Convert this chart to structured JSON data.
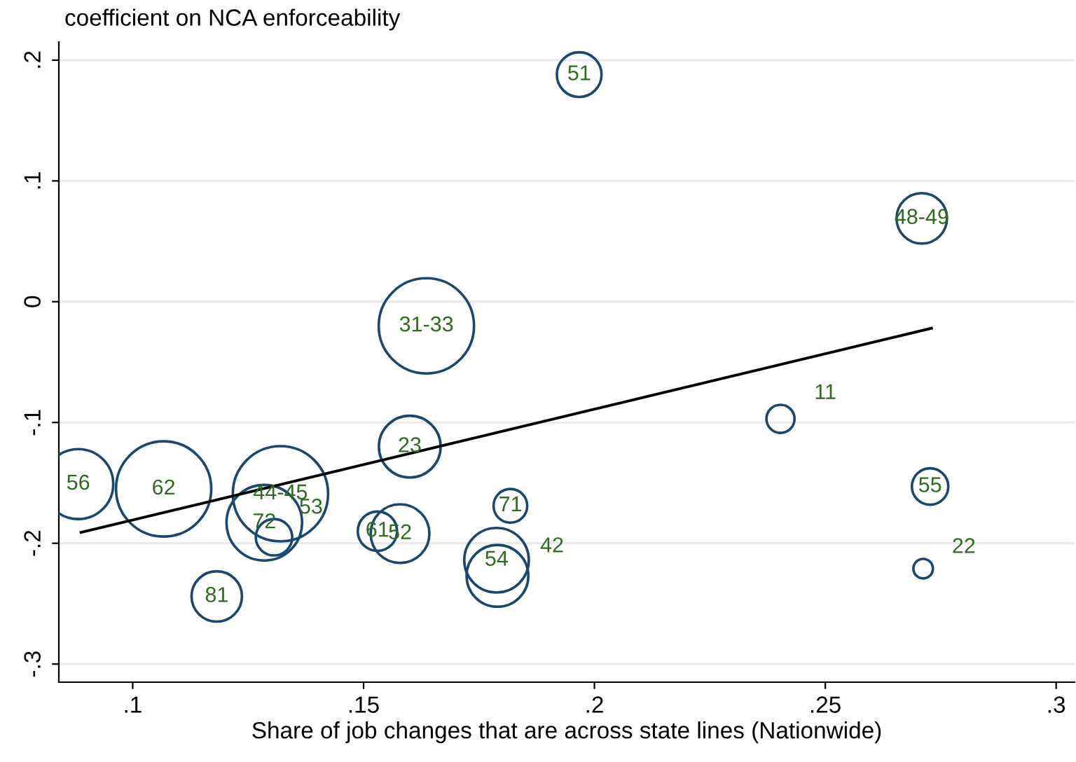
{
  "chart_data": {
    "type": "bubble",
    "ylabel": "coefficient on NCA enforceability",
    "xlabel": "Share of job changes that are across state lines (Nationwide)",
    "xlim": [
      0.084,
      0.304
    ],
    "ylim": [
      -0.315,
      0.215
    ],
    "xticks": [
      {
        "value": 0.1,
        "label": ".1"
      },
      {
        "value": 0.15,
        "label": ".15"
      },
      {
        "value": 0.2,
        "label": ".2"
      },
      {
        "value": 0.25,
        "label": ".25"
      },
      {
        "value": 0.3,
        "label": ".3"
      }
    ],
    "yticks": [
      {
        "value": -0.3,
        "label": "-.3"
      },
      {
        "value": -0.2,
        "label": "-.2"
      },
      {
        "value": -0.1,
        "label": "-.1"
      },
      0,
      {
        "value": 0.1,
        "label": ".1"
      },
      {
        "value": 0.2,
        "label": ".2"
      }
    ],
    "grid": "y",
    "legend": false,
    "series": [
      {
        "color": "#1a476f",
        "marker": "circle",
        "x": [
          0.1967,
          0.2709,
          0.1636,
          0.2403,
          0.2727,
          0.2712,
          0.16,
          0.0882,
          0.1067,
          0.132,
          0.1285,
          0.1306,
          0.153,
          0.1579,
          0.1818,
          0.1788,
          0.179,
          0.1182
        ],
        "values": [
          0.188,
          0.069,
          -0.02,
          -0.097,
          -0.153,
          -0.221,
          -0.12,
          -0.151,
          -0.155,
          -0.159,
          -0.183,
          -0.195,
          -0.19,
          -0.192,
          -0.169,
          -0.214,
          -0.227,
          -0.244
        ],
        "sizes": [
          0.22,
          0.28,
          1,
          0.087,
          0.146,
          0.042,
          0.42,
          0.54,
          1,
          1,
          0.63,
          0.146,
          0.17,
          0.38,
          0.125,
          0.46,
          0.42,
          0.28
        ]
      },
      {
        "type": "line",
        "color": "#000000",
        "x": [
          0.0888,
          0.273
        ],
        "values": [
          -0.191,
          -0.022
        ]
      }
    ],
    "annotations": [
      {
        "text": "51",
        "x": 0.1967,
        "y": 0.188
      },
      {
        "text": "48-49",
        "x": 0.2709,
        "y": 0.069
      },
      {
        "text": "31-33",
        "x": 0.1636,
        "y": -0.02
      },
      {
        "text": "11",
        "x": 0.2403,
        "y": -0.097
      },
      {
        "text": "55",
        "x": 0.2727,
        "y": -0.153
      },
      {
        "text": "22",
        "x": 0.2712,
        "y": -0.221
      },
      {
        "text": "23",
        "x": 0.16,
        "y": -0.12
      },
      {
        "text": "56",
        "x": 0.0882,
        "y": -0.151
      },
      {
        "text": "62",
        "x": 0.1067,
        "y": -0.155
      },
      {
        "text": "44-45",
        "x": 0.132,
        "y": -0.159
      },
      {
        "text": "72",
        "x": 0.1285,
        "y": -0.183
      },
      {
        "text": "53",
        "x": 0.1306,
        "y": -0.195
      },
      {
        "text": "61",
        "x": 0.153,
        "y": -0.19
      },
      {
        "text": "52",
        "x": 0.1579,
        "y": -0.192
      },
      {
        "text": "71",
        "x": 0.1818,
        "y": -0.169
      },
      {
        "text": "54",
        "x": 0.1788,
        "y": -0.214
      },
      {
        "text": "42",
        "x": 0.179,
        "y": -0.227
      },
      {
        "text": "81",
        "x": 0.1182,
        "y": -0.244
      }
    ]
  }
}
